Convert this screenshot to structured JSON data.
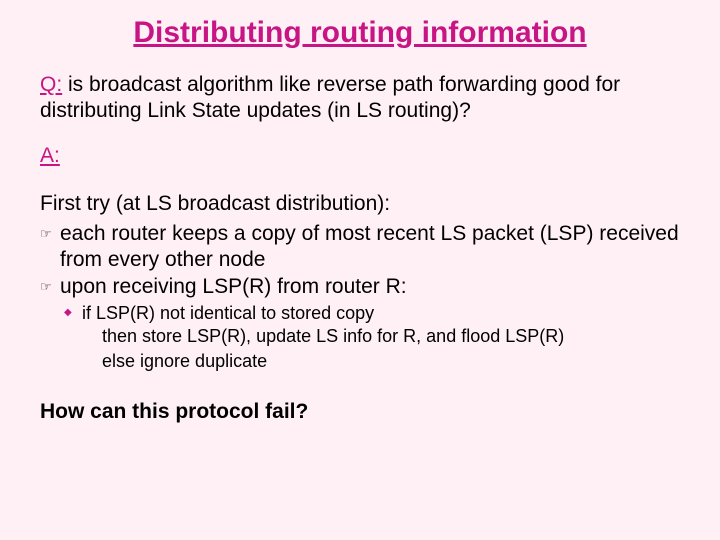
{
  "colors": {
    "background": "#fff0f5",
    "accent": "#c71585",
    "text": "#000000"
  },
  "title": "Distributing routing information",
  "q_label": "Q:",
  "q_text": " is broadcast algorithm like reverse path forwarding good for distributing Link State updates (in LS routing)?",
  "a_label": "A:",
  "first_try": "First try (at LS broadcast distribution):",
  "bullets": [
    "each router keeps a copy of most recent LS packet (LSP) received from every other node",
    "upon receiving LSP(R) from router R:"
  ],
  "sub_bullet": "if LSP(R) not identical to stored copy",
  "sub_lines": [
    "then store LSP(R), update LS info for R, and flood LSP(R)",
    "else ignore duplicate"
  ],
  "final_question": "How can this protocol fail?",
  "icons": {
    "hand": "☞",
    "diamond": "◆"
  },
  "typography": {
    "title_fontsize": 30,
    "body_fontsize": 21,
    "sub_fontsize": 18,
    "font_family": "Arial"
  }
}
